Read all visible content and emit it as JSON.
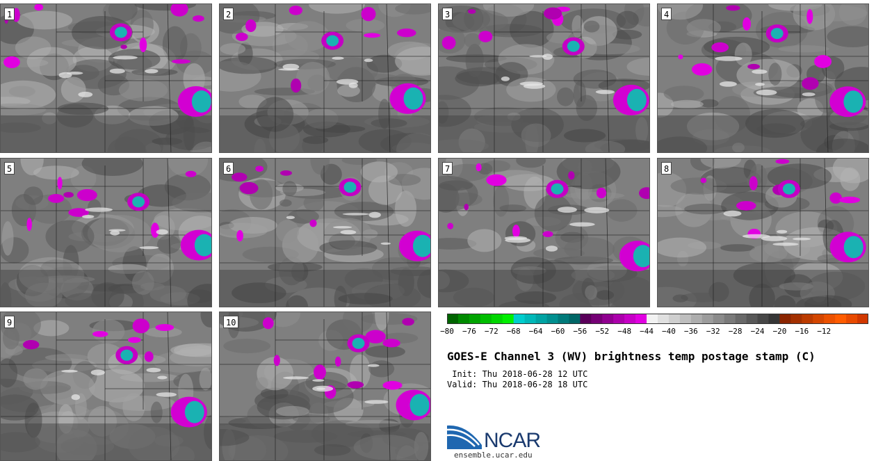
{
  "panels": [
    {
      "label": "1"
    },
    {
      "label": "2"
    },
    {
      "label": "3"
    },
    {
      "label": "4"
    },
    {
      "label": "5"
    },
    {
      "label": "6"
    },
    {
      "label": "7"
    },
    {
      "label": "8"
    },
    {
      "label": "9"
    },
    {
      "label": "10"
    }
  ],
  "colorbar": {
    "ticks": [
      "−80",
      "−76",
      "−72",
      "−68",
      "−64",
      "−60",
      "−56",
      "−52",
      "−48",
      "−44",
      "−40",
      "−36",
      "−32",
      "−28",
      "−24",
      "−20",
      "−16",
      "−12"
    ],
    "colors": [
      "#006400",
      "#008a00",
      "#00a300",
      "#00bd00",
      "#00d600",
      "#00ef00",
      "#00cdcd",
      "#00b8b8",
      "#00a3a3",
      "#008f8f",
      "#007a7a",
      "#006666",
      "#5a005a",
      "#750075",
      "#900090",
      "#ab00ab",
      "#c600c6",
      "#e100e1",
      "#f2f2f2",
      "#e0e0e0",
      "#cfcfcf",
      "#bebebe",
      "#adadad",
      "#9c9c9c",
      "#8b8b8b",
      "#7a7a7a",
      "#696969",
      "#585858",
      "#474747",
      "#363636",
      "#8b2500",
      "#a33000",
      "#bb3b00",
      "#d34600",
      "#eb5100",
      "#ff5c00",
      "#e84a00",
      "#d13800"
    ]
  },
  "title": "GOES-E Channel 3 (WV) brightness temp postage stamp (C)",
  "init": " Init: Thu 2018-06-28 12 UTC",
  "valid": "Valid: Thu 2018-06-28 18 UTC",
  "logo": {
    "name": "NCAR",
    "url": "ensemble.ucar.edu"
  }
}
